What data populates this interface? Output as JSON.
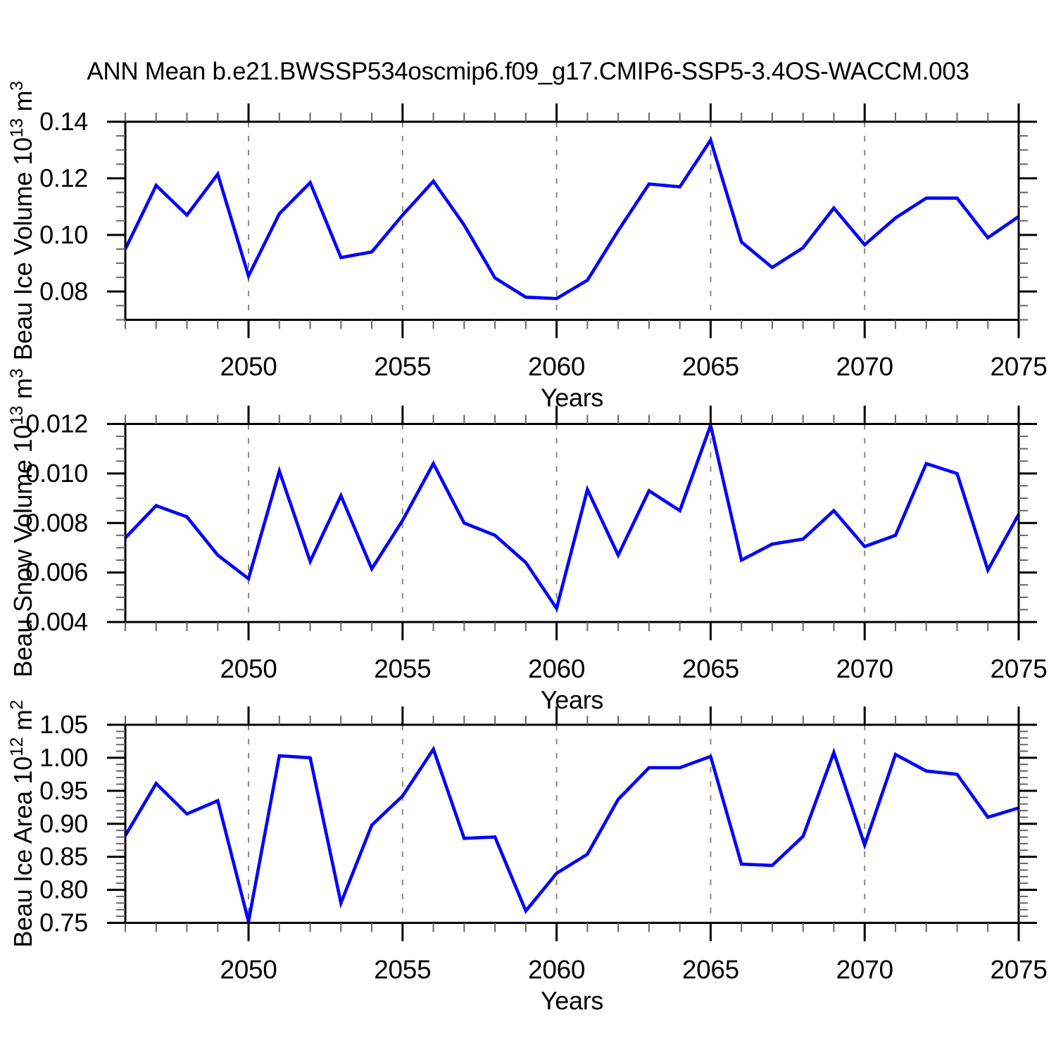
{
  "title": "ANN Mean b.e21.BWSSP534oscmip6.f09_g17.CMIP6-SSP5-3.4OS-WACCM.003",
  "line_color": "#0000ff",
  "chart_data": [
    {
      "id": "beau-ice-volume",
      "type": "line",
      "ylabel": "Beau Ice Volume 10^13 m^3",
      "xlabel": "Years",
      "ylim": [
        0.07,
        0.14
      ],
      "xlim": [
        2046,
        2075
      ],
      "y_minor_step": 0.005,
      "x_minor_step": 1,
      "grid": "vertical-dashed",
      "legend": "none",
      "yticks": [
        {
          "v": 0.08,
          "label": "0.08"
        },
        {
          "v": 0.1,
          "label": "0.10"
        },
        {
          "v": 0.12,
          "label": "0.12"
        },
        {
          "v": 0.14,
          "label": "0.14"
        }
      ],
      "xticks": [
        {
          "v": 2050,
          "label": "2050"
        },
        {
          "v": 2055,
          "label": "2055"
        },
        {
          "v": 2060,
          "label": "2060"
        },
        {
          "v": 2065,
          "label": "2065"
        },
        {
          "v": 2070,
          "label": "2070"
        },
        {
          "v": 2075,
          "label": "2075"
        }
      ],
      "gridlines_x": [
        2050,
        2055,
        2060,
        2065,
        2070
      ],
      "x": [
        2046,
        2047,
        2048,
        2049,
        2050,
        2051,
        2052,
        2053,
        2054,
        2055,
        2056,
        2057,
        2058,
        2059,
        2060,
        2061,
        2062,
        2063,
        2064,
        2065,
        2066,
        2067,
        2068,
        2069,
        2070,
        2071,
        2072,
        2073,
        2074,
        2075
      ],
      "values": [
        0.095,
        0.1175,
        0.107,
        0.1215,
        0.0855,
        0.1075,
        0.1185,
        0.092,
        0.094,
        0.107,
        0.119,
        0.1035,
        0.0848,
        0.078,
        0.0775,
        0.084,
        0.1015,
        0.118,
        0.117,
        0.1335,
        0.0975,
        0.0885,
        0.0955,
        0.1095,
        0.0965,
        0.106,
        0.113,
        0.113,
        0.099,
        0.1065
      ]
    },
    {
      "id": "beau-snow-volume",
      "type": "line",
      "ylabel": "Beau Snow Volume 10^13 m^3",
      "xlabel": "Years",
      "ylim": [
        0.004,
        0.012
      ],
      "xlim": [
        2046,
        2075
      ],
      "y_minor_step": 0.0005,
      "x_minor_step": 1,
      "grid": "vertical-dashed",
      "legend": "none",
      "yticks": [
        {
          "v": 0.004,
          "label": "0.004"
        },
        {
          "v": 0.006,
          "label": "0.006"
        },
        {
          "v": 0.008,
          "label": "0.008"
        },
        {
          "v": 0.01,
          "label": "0.010"
        },
        {
          "v": 0.012,
          "label": "0.012"
        }
      ],
      "xticks": [
        {
          "v": 2050,
          "label": "2050"
        },
        {
          "v": 2055,
          "label": "2055"
        },
        {
          "v": 2060,
          "label": "2060"
        },
        {
          "v": 2065,
          "label": "2065"
        },
        {
          "v": 2070,
          "label": "2070"
        },
        {
          "v": 2075,
          "label": "2075"
        }
      ],
      "gridlines_x": [
        2050,
        2055,
        2060,
        2065,
        2070
      ],
      "x": [
        2046,
        2047,
        2048,
        2049,
        2050,
        2051,
        2052,
        2053,
        2054,
        2055,
        2056,
        2057,
        2058,
        2059,
        2060,
        2061,
        2062,
        2063,
        2064,
        2065,
        2066,
        2067,
        2068,
        2069,
        2070,
        2071,
        2072,
        2073,
        2074,
        2075
      ],
      "values": [
        0.0074,
        0.0087,
        0.00825,
        0.0067,
        0.00575,
        0.0101,
        0.00645,
        0.0091,
        0.00615,
        0.0081,
        0.0104,
        0.008,
        0.0075,
        0.0064,
        0.00455,
        0.00935,
        0.0067,
        0.0093,
        0.0085,
        0.01195,
        0.0065,
        0.00715,
        0.00735,
        0.0085,
        0.00705,
        0.0075,
        0.0104,
        0.01,
        0.0061,
        0.00835
      ]
    },
    {
      "id": "beau-ice-area",
      "type": "line",
      "ylabel": "Beau Ice Area 10^12 m^2",
      "xlabel": "Years",
      "ylim": [
        0.75,
        1.05
      ],
      "xlim": [
        2046,
        2075
      ],
      "y_minor_step": 0.01,
      "x_minor_step": 1,
      "grid": "vertical-dashed",
      "legend": "none",
      "yticks": [
        {
          "v": 0.75,
          "label": "0.75"
        },
        {
          "v": 0.8,
          "label": "0.80"
        },
        {
          "v": 0.85,
          "label": "0.85"
        },
        {
          "v": 0.9,
          "label": "0.90"
        },
        {
          "v": 0.95,
          "label": "0.95"
        },
        {
          "v": 1.0,
          "label": "1.00"
        },
        {
          "v": 1.05,
          "label": "1.05"
        }
      ],
      "xticks": [
        {
          "v": 2050,
          "label": "2050"
        },
        {
          "v": 2055,
          "label": "2055"
        },
        {
          "v": 2060,
          "label": "2060"
        },
        {
          "v": 2065,
          "label": "2065"
        },
        {
          "v": 2070,
          "label": "2070"
        },
        {
          "v": 2075,
          "label": "2075"
        }
      ],
      "gridlines_x": [
        2050,
        2055,
        2060,
        2065,
        2070
      ],
      "x": [
        2046,
        2047,
        2048,
        2049,
        2050,
        2051,
        2052,
        2053,
        2054,
        2055,
        2056,
        2057,
        2058,
        2059,
        2060,
        2061,
        2062,
        2063,
        2064,
        2065,
        2066,
        2067,
        2068,
        2069,
        2070,
        2071,
        2072,
        2073,
        2074,
        2075
      ],
      "values": [
        0.882,
        0.961,
        0.915,
        0.935,
        0.752,
        1.003,
        1.0,
        0.78,
        0.898,
        0.942,
        1.013,
        0.878,
        0.88,
        0.768,
        0.825,
        0.854,
        0.937,
        0.985,
        0.985,
        1.002,
        0.839,
        0.837,
        0.881,
        1.008,
        0.868,
        1.005,
        0.98,
        0.975,
        0.91,
        0.924
      ]
    }
  ]
}
